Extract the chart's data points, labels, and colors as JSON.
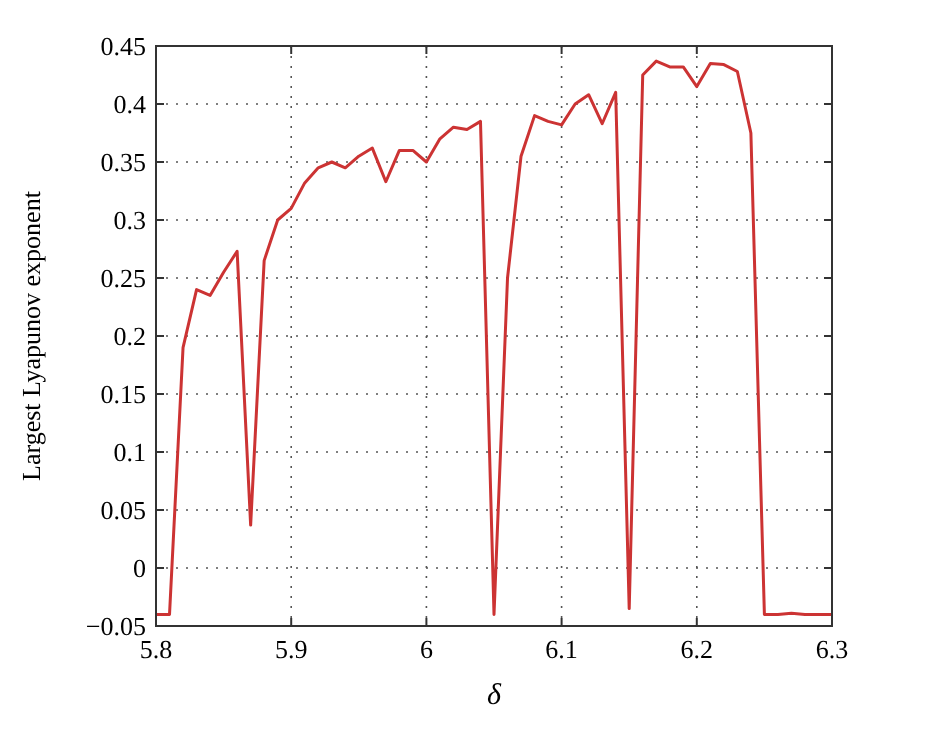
{
  "chart_data": {
    "type": "line",
    "xlabel": "δ",
    "ylabel": "Largest Lyapunov exponent",
    "x": [
      5.8,
      5.81,
      5.82,
      5.83,
      5.84,
      5.85,
      5.86,
      5.87,
      5.88,
      5.89,
      5.9,
      5.91,
      5.92,
      5.93,
      5.94,
      5.95,
      5.96,
      5.97,
      5.98,
      5.99,
      6.0,
      6.01,
      6.02,
      6.03,
      6.04,
      6.05,
      6.06,
      6.07,
      6.08,
      6.09,
      6.1,
      6.11,
      6.12,
      6.13,
      6.14,
      6.15,
      6.16,
      6.17,
      6.18,
      6.19,
      6.2,
      6.21,
      6.22,
      6.23,
      6.24,
      6.25,
      6.26,
      6.27,
      6.28,
      6.29,
      6.3
    ],
    "series": [
      {
        "color": "#cc3333",
        "values": [
          -0.04,
          -0.04,
          0.19,
          0.24,
          0.235,
          0.255,
          0.273,
          0.037,
          0.265,
          0.3,
          0.31,
          0.332,
          0.345,
          0.35,
          0.345,
          0.355,
          0.362,
          0.333,
          0.36,
          0.36,
          0.35,
          0.37,
          0.38,
          0.378,
          0.385,
          -0.04,
          0.25,
          0.355,
          0.39,
          0.385,
          0.382,
          0.4,
          0.408,
          0.383,
          0.41,
          -0.035,
          0.425,
          0.437,
          0.432,
          0.432,
          0.415,
          0.435,
          0.434,
          0.428,
          0.375,
          -0.04,
          -0.04,
          -0.039,
          -0.04,
          -0.04,
          -0.04
        ]
      }
    ],
    "xlim": [
      5.8,
      6.3
    ],
    "ylim": [
      -0.05,
      0.45
    ],
    "xticks": [
      5.8,
      5.9,
      6,
      6.1,
      6.2,
      6.3
    ],
    "yticks": [
      -0.05,
      0,
      0.05,
      0.1,
      0.15,
      0.2,
      0.25,
      0.3,
      0.35,
      0.4,
      0.45
    ],
    "grid": true,
    "marker": "none",
    "line_style": "solid"
  }
}
